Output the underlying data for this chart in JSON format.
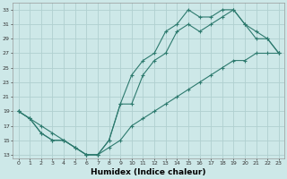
{
  "xlabel": "Humidex (Indice chaleur)",
  "bg_color": "#cde8e8",
  "grid_color": "#b0d0d0",
  "line_color": "#2d7a6e",
  "xlim": [
    -0.5,
    23.5
  ],
  "ylim": [
    12.5,
    34.0
  ],
  "xticks": [
    0,
    1,
    2,
    3,
    4,
    5,
    6,
    7,
    8,
    9,
    10,
    11,
    12,
    13,
    14,
    15,
    16,
    17,
    18,
    19,
    20,
    21,
    22,
    23
  ],
  "yticks": [
    13,
    15,
    17,
    19,
    21,
    23,
    25,
    27,
    29,
    31,
    33
  ],
  "line1_x": [
    0,
    1,
    2,
    3,
    4,
    5,
    6,
    7,
    8,
    9,
    10,
    11,
    12,
    13,
    14,
    15,
    16,
    17,
    18,
    19,
    20,
    21,
    22,
    23
  ],
  "line1_y": [
    19,
    18,
    16,
    15,
    15,
    14,
    13,
    13,
    15,
    20,
    20,
    24,
    26,
    27,
    30,
    31,
    30,
    31,
    32,
    33,
    31,
    30,
    29,
    27
  ],
  "line2_x": [
    0,
    1,
    2,
    3,
    4,
    5,
    6,
    7,
    8,
    9,
    10,
    11,
    12,
    13,
    14,
    15,
    16,
    17,
    18,
    19,
    20,
    21,
    22,
    23
  ],
  "line2_y": [
    19,
    18,
    16,
    15,
    15,
    14,
    13,
    13,
    15,
    20,
    24,
    26,
    27,
    30,
    31,
    33,
    32,
    32,
    33,
    33,
    31,
    29,
    29,
    27
  ],
  "line3_x": [
    0,
    1,
    2,
    3,
    4,
    5,
    6,
    7,
    8,
    9,
    10,
    11,
    12,
    13,
    14,
    15,
    16,
    17,
    18,
    19,
    20,
    21,
    22,
    23
  ],
  "line3_y": [
    19,
    18,
    17,
    16,
    15,
    14,
    13,
    13,
    14,
    15,
    17,
    18,
    19,
    20,
    21,
    22,
    23,
    24,
    25,
    26,
    26,
    27,
    27,
    27
  ]
}
